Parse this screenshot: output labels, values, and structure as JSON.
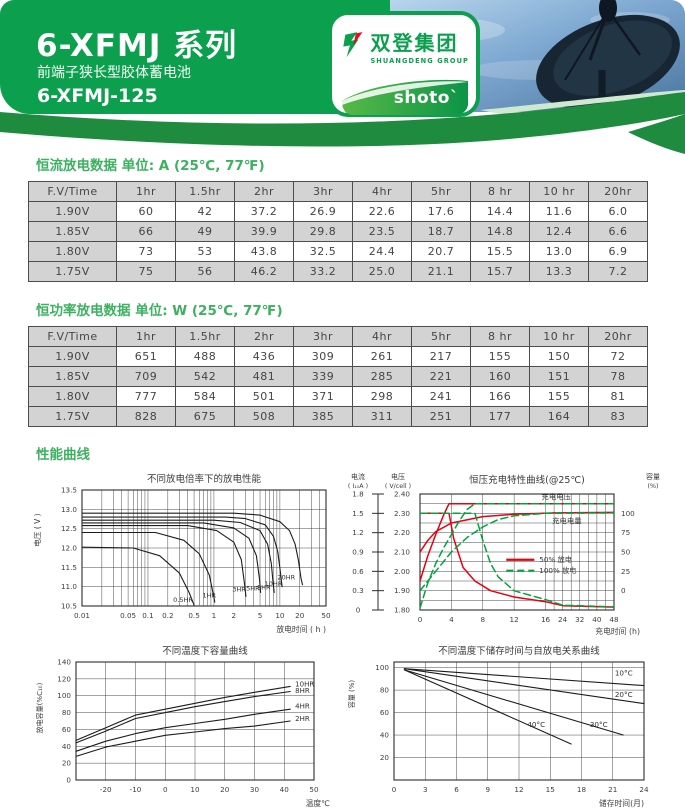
{
  "header": {
    "series_title": "6-XFMJ 系列",
    "subtitle": "前端子狭长型胶体蓄电池",
    "model": "6-XFMJ-125",
    "logo": {
      "cn": "双登集团",
      "en": "SHUANGDENG GROUP",
      "brand": "shoto`"
    }
  },
  "colors": {
    "brand_green": "#0ca04e",
    "dark_green": "#1e8b3f",
    "light_green": "#cfe8d2",
    "title_green": "#3cb15f",
    "table_gray": "#d3d3d3",
    "chart_red": "#e60012",
    "chart_green": "#00a33e"
  },
  "sections": {
    "table1_title": "恒流放电数据 单位: A (25℃, 77℉)",
    "table2_title": "恒功率放电数据 单位: W (25℃, 77℉)",
    "curves_title": "性能曲线"
  },
  "tables": {
    "current": {
      "headers": [
        "F.V/Time",
        "1hr",
        "1.5hr",
        "2hr",
        "3hr",
        "4hr",
        "5hr",
        "8 hr",
        "10 hr",
        "20hr"
      ],
      "rows": [
        [
          "1.90V",
          "60",
          "42",
          "37.2",
          "26.9",
          "22.6",
          "17.6",
          "14.4",
          "11.6",
          "6.0"
        ],
        [
          "1.85V",
          "66",
          "49",
          "39.9",
          "29.8",
          "23.5",
          "18.7",
          "14.8",
          "12.4",
          "6.6"
        ],
        [
          "1.80V",
          "73",
          "53",
          "43.8",
          "32.5",
          "24.4",
          "20.7",
          "15.5",
          "13.0",
          "6.9"
        ],
        [
          "1.75V",
          "75",
          "56",
          "46.2",
          "33.2",
          "25.0",
          "21.1",
          "15.7",
          "13.3",
          "7.2"
        ]
      ]
    },
    "power": {
      "headers": [
        "F.V/Time",
        "1hr",
        "1.5hr",
        "2hr",
        "3hr",
        "4hr",
        "5hr",
        "8 hr",
        "10 hr",
        "20hr"
      ],
      "rows": [
        [
          "1.90V",
          "651",
          "488",
          "436",
          "309",
          "261",
          "217",
          "155",
          "150",
          "72"
        ],
        [
          "1.85V",
          "709",
          "542",
          "481",
          "339",
          "285",
          "221",
          "160",
          "151",
          "78"
        ],
        [
          "1.80V",
          "777",
          "584",
          "501",
          "371",
          "298",
          "241",
          "166",
          "155",
          "81"
        ],
        [
          "1.75V",
          "828",
          "675",
          "508",
          "385",
          "311",
          "251",
          "177",
          "164",
          "83"
        ]
      ]
    }
  },
  "chart_data": [
    {
      "id": "discharge_rate",
      "type": "line",
      "title": "不同放电倍率下的放电性能",
      "xlabel": "放电时间 ( h )",
      "ylabel": "电压 ( V )",
      "xscale": "log",
      "xlim": [
        0.01,
        50
      ],
      "xticks": [
        0.01,
        0.05,
        0.1,
        0.2,
        0.5,
        1,
        2,
        5,
        10,
        20,
        50
      ],
      "xtick_labels": [
        "0.01",
        "0.05",
        "0.1",
        "0.2",
        "0.5",
        "1",
        "2",
        "5",
        "10",
        "20",
        "50"
      ],
      "ylim": [
        10.5,
        13.5
      ],
      "yticks": [
        10.5,
        11.0,
        11.5,
        12.0,
        12.5,
        13.0,
        13.5
      ],
      "series": [
        {
          "name": "20HR",
          "label_at": [
            12.5,
            11.18
          ],
          "points": [
            [
              0.01,
              12.9
            ],
            [
              2,
              12.9
            ],
            [
              5,
              12.85
            ],
            [
              10,
              12.68
            ],
            [
              14,
              12.45
            ],
            [
              17,
              12.1
            ],
            [
              19,
              11.7
            ],
            [
              21,
              11.2
            ],
            [
              22,
              11.05
            ]
          ]
        },
        {
          "name": "10HR",
          "label_at": [
            8.0,
            11.02
          ],
          "points": [
            [
              0.01,
              12.8
            ],
            [
              1.5,
              12.8
            ],
            [
              3,
              12.76
            ],
            [
              6,
              12.6
            ],
            [
              8,
              12.3
            ],
            [
              9.3,
              11.9
            ],
            [
              10.2,
              11.35
            ],
            [
              10.8,
              11.0
            ]
          ]
        },
        {
          "name": "8HR",
          "label_at": [
            5.7,
            10.93
          ],
          "points": [
            [
              0.01,
              12.72
            ],
            [
              1,
              12.72
            ],
            [
              2.5,
              12.66
            ],
            [
              5,
              12.45
            ],
            [
              6.5,
              12.1
            ],
            [
              7.4,
              11.6
            ],
            [
              7.9,
              11.1
            ],
            [
              8.2,
              10.85
            ]
          ]
        },
        {
          "name": "5HR",
          "label_at": [
            3.9,
            10.9
          ],
          "points": [
            [
              0.01,
              12.65
            ],
            [
              0.7,
              12.65
            ],
            [
              2,
              12.52
            ],
            [
              3.4,
              12.25
            ],
            [
              4.4,
              11.8
            ],
            [
              4.9,
              11.2
            ],
            [
              5.1,
              10.85
            ]
          ]
        },
        {
          "name": "3HR",
          "label_at": [
            2.4,
            10.88
          ],
          "points": [
            [
              0.01,
              12.58
            ],
            [
              0.4,
              12.58
            ],
            [
              1.1,
              12.45
            ],
            [
              2,
              12.15
            ],
            [
              2.6,
              11.7
            ],
            [
              2.95,
              11.0
            ],
            [
              3.05,
              10.75
            ]
          ]
        },
        {
          "name": "1HR",
          "label_at": [
            0.85,
            10.72
          ],
          "points": [
            [
              0.01,
              12.4
            ],
            [
              0.13,
              12.4
            ],
            [
              0.35,
              12.2
            ],
            [
              0.6,
              11.85
            ],
            [
              0.85,
              11.3
            ],
            [
              0.98,
              10.8
            ],
            [
              1.03,
              10.6
            ]
          ]
        },
        {
          "name": "0.5HR",
          "label_at": [
            0.34,
            10.6
          ],
          "points": [
            [
              0.01,
              12.02
            ],
            [
              0.06,
              12.0
            ],
            [
              0.15,
              11.8
            ],
            [
              0.3,
              11.35
            ],
            [
              0.42,
              10.85
            ],
            [
              0.5,
              10.52
            ]
          ]
        }
      ]
    },
    {
      "id": "cv_charge",
      "type": "line",
      "title": "恒压充电特性曲线(@25℃)",
      "xlabel": "充电时间 (h)",
      "left_axis1": {
        "title": "电流",
        "subtitle": "( I₁₀A )",
        "ticks": [
          "0",
          "0.3",
          "0.6",
          "0.9",
          "1.2",
          "1.5",
          "1.8"
        ]
      },
      "left_axis2": {
        "title": "电压",
        "subtitle": "( V/cell )",
        "ticks": [
          "1.80",
          "1.90",
          "2.00",
          "2.10",
          "2.20",
          "2.30",
          "2.40"
        ]
      },
      "right_axis": {
        "title": "容量",
        "subtitle": "(%)",
        "ticks": [
          "0",
          "25",
          "50",
          "75",
          "100"
        ]
      },
      "xticks": [
        0,
        4,
        8,
        12,
        16,
        24,
        32,
        40,
        48
      ],
      "vlim": [
        1.8,
        2.4
      ],
      "annotations": [
        {
          "text": "充电电压",
          "x": 21,
          "y": 2.372
        },
        {
          "text": "充电电量",
          "x": 26,
          "y": 2.247
        }
      ],
      "legend": [
        {
          "label": "50%  放电",
          "color": "#e60012",
          "dash": false
        },
        {
          "label": "100%  放电",
          "color": "#00a33e",
          "dash": true
        }
      ],
      "series": [
        {
          "group": "50% discharge",
          "kind": "voltage",
          "color": "#e60012",
          "dash": false,
          "points": [
            [
              0,
              1.95
            ],
            [
              1,
              2.08
            ],
            [
              2,
              2.19
            ],
            [
              3,
              2.29
            ],
            [
              3.7,
              2.35
            ],
            [
              48,
              2.35
            ]
          ]
        },
        {
          "group": "50% discharge",
          "kind": "capacity",
          "color": "#e60012",
          "dash": false,
          "points": [
            [
              0,
              2.1
            ],
            [
              1,
              2.16
            ],
            [
              2,
              2.205
            ],
            [
              4,
              2.25
            ],
            [
              8,
              2.283
            ],
            [
              12,
              2.295
            ],
            [
              20,
              2.302
            ],
            [
              48,
              2.305
            ]
          ]
        },
        {
          "group": "50% discharge",
          "kind": "current",
          "color": "#e60012",
          "dash": false,
          "points": [
            [
              0,
              2.3
            ],
            [
              3.7,
              2.3
            ],
            [
              4.3,
              2.17
            ],
            [
              5.5,
              2.02
            ],
            [
              7,
              1.95
            ],
            [
              9,
              1.9
            ],
            [
              12,
              1.867
            ],
            [
              16,
              1.843
            ],
            [
              24,
              1.822
            ],
            [
              48,
              1.815
            ]
          ]
        },
        {
          "group": "100% discharge",
          "kind": "voltage",
          "color": "#00a33e",
          "dash": true,
          "points": [
            [
              0,
              1.81
            ],
            [
              1,
              1.94
            ],
            [
              2,
              2.04
            ],
            [
              3,
              2.12
            ],
            [
              4,
              2.19
            ],
            [
              5,
              2.26
            ],
            [
              6,
              2.32
            ],
            [
              7,
              2.35
            ],
            [
              48,
              2.35
            ]
          ]
        },
        {
          "group": "100% discharge",
          "kind": "capacity",
          "color": "#00a33e",
          "dash": true,
          "points": [
            [
              0,
              1.9
            ],
            [
              2,
              2.0
            ],
            [
              4,
              2.1
            ],
            [
              6,
              2.175
            ],
            [
              8,
              2.23
            ],
            [
              10,
              2.268
            ],
            [
              12,
              2.287
            ],
            [
              16,
              2.3
            ],
            [
              48,
              2.302
            ]
          ]
        },
        {
          "group": "100% discharge",
          "kind": "current",
          "color": "#00a33e",
          "dash": true,
          "points": [
            [
              0,
              2.3
            ],
            [
              7,
              2.3
            ],
            [
              8,
              2.16
            ],
            [
              9,
              2.04
            ],
            [
              10,
              1.97
            ],
            [
              12,
              1.9
            ],
            [
              16,
              1.854
            ],
            [
              24,
              1.825
            ],
            [
              48,
              1.816
            ]
          ]
        }
      ]
    },
    {
      "id": "capacity_temp",
      "type": "line",
      "title": "不同温度下容量曲线",
      "xlabel": "温度℃",
      "ylabel": "放电容量(%C₁₀)",
      "xlim": [
        -30,
        50
      ],
      "xticks": [
        -20,
        -10,
        0,
        10,
        20,
        30,
        40,
        50
      ],
      "ylim": [
        0,
        140
      ],
      "yticks": [
        0,
        20,
        40,
        60,
        80,
        100,
        120,
        140
      ],
      "series": [
        {
          "name": "10HR",
          "label_at": [
            43,
            111
          ],
          "points": [
            [
              -30,
              47
            ],
            [
              -20,
              62
            ],
            [
              -10,
              77
            ],
            [
              0,
              84
            ],
            [
              10,
              91
            ],
            [
              20,
              98
            ],
            [
              30,
              104
            ],
            [
              42,
              111
            ]
          ]
        },
        {
          "name": "8HR",
          "label_at": [
            43,
            103
          ],
          "points": [
            [
              -30,
              44
            ],
            [
              -20,
              58
            ],
            [
              -10,
              73
            ],
            [
              0,
              80
            ],
            [
              10,
              87
            ],
            [
              20,
              93
            ],
            [
              30,
              99
            ],
            [
              42,
              105
            ]
          ]
        },
        {
          "name": "4HR",
          "label_at": [
            43,
            85
          ],
          "points": [
            [
              -30,
              34
            ],
            [
              -20,
              46
            ],
            [
              -10,
              55
            ],
            [
              0,
              62
            ],
            [
              10,
              67
            ],
            [
              20,
              72
            ],
            [
              30,
              78
            ],
            [
              42,
              84
            ]
          ]
        },
        {
          "name": "2HR",
          "label_at": [
            43,
            70
          ],
          "points": [
            [
              -30,
              28
            ],
            [
              -20,
              39
            ],
            [
              -10,
              46
            ],
            [
              0,
              53
            ],
            [
              10,
              57
            ],
            [
              20,
              61
            ],
            [
              30,
              64
            ],
            [
              42,
              70
            ]
          ]
        }
      ]
    },
    {
      "id": "self_discharge",
      "type": "line",
      "title": "不同温度下储存时间与自放电关系曲线",
      "xlabel": "储存时间(月)",
      "ylabel": "容量 (%)",
      "xlim": [
        0,
        24
      ],
      "xticks": [
        0,
        3,
        6,
        9,
        12,
        15,
        18,
        21,
        24
      ],
      "ylim": [
        0,
        105
      ],
      "yticks": [
        20,
        40,
        60,
        80,
        100
      ],
      "series": [
        {
          "name": "10°C",
          "label_at": [
            21.2,
            93
          ],
          "points": [
            [
              1,
              99
            ],
            [
              24,
              84
            ]
          ]
        },
        {
          "name": "20°C",
          "label_at": [
            21.2,
            74
          ],
          "points": [
            [
              1,
              99
            ],
            [
              24,
              68
            ]
          ]
        },
        {
          "name": "30°C",
          "label_at": [
            18.8,
            47
          ],
          "points": [
            [
              1,
              98
            ],
            [
              22,
              40
            ]
          ]
        },
        {
          "name": "40°C",
          "label_at": [
            12.8,
            47
          ],
          "points": [
            [
              1,
              98
            ],
            [
              17,
              32
            ]
          ]
        }
      ]
    }
  ]
}
